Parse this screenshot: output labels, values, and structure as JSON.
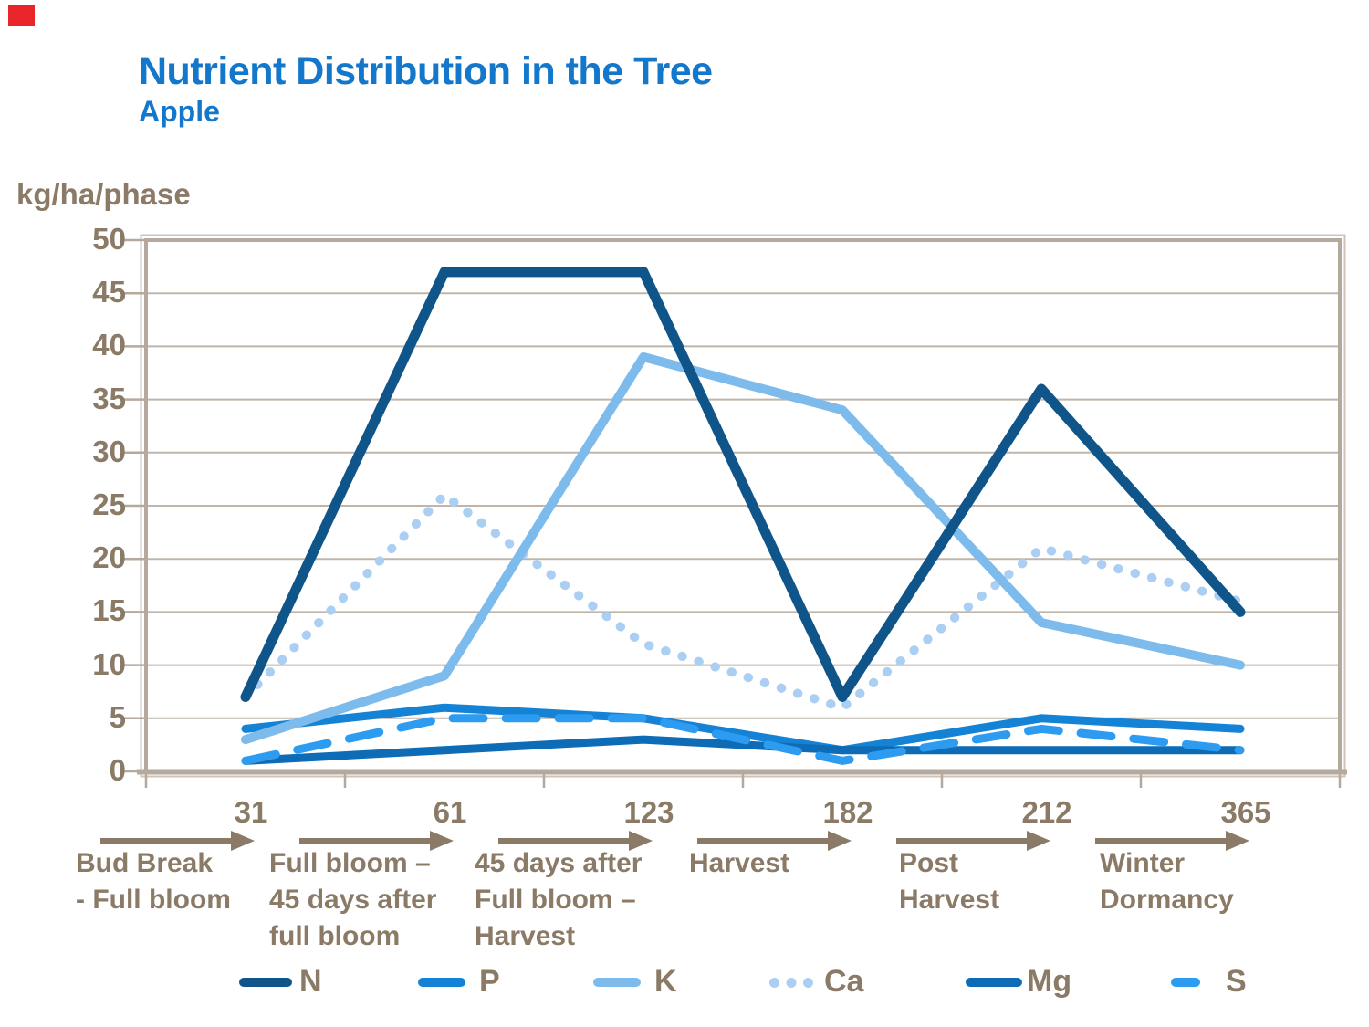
{
  "slide": {
    "title": "Nutrient Distribution in the Tree",
    "subtitle": "Apple"
  },
  "colors": {
    "title_blue": "#1377cb",
    "text_brown": "#8a7a66",
    "axis_tan": "#b4a99c",
    "gridline_tan": "#bfb5a8",
    "corner_mark_red": "#e8262a"
  },
  "chart_data": {
    "type": "line",
    "title": "Nutrient Distribution in the Tree",
    "subtitle": "Apple",
    "y_axis_label": "kg/ha/phase",
    "ylim": [
      0,
      50
    ],
    "y_tick_step": 5,
    "y_tick_labels": [
      "50",
      "45",
      "40",
      "35",
      "30",
      "25",
      "20",
      "15",
      "10",
      "5",
      "0"
    ],
    "grid": "horizontal",
    "legend_position": "bottom",
    "x_tick_labels": [
      "31",
      "61",
      "123",
      "182",
      "212",
      "365"
    ],
    "x_phases": [
      {
        "lines": [
          "Bud Break",
          "- Full bloom"
        ]
      },
      {
        "lines": [
          "Full bloom –",
          "45 days after",
          "full bloom"
        ]
      },
      {
        "lines": [
          "45 days after",
          "Full bloom –",
          "Harvest"
        ]
      },
      {
        "lines": [
          "Harvest"
        ]
      },
      {
        "lines": [
          "Post",
          "Harvest"
        ]
      },
      {
        "lines": [
          "Winter",
          "Dormancy"
        ]
      }
    ],
    "series": [
      {
        "name": "N",
        "color": "#0f558a",
        "style": "solid",
        "values": [
          7,
          47,
          47,
          7,
          36,
          15
        ]
      },
      {
        "name": "P",
        "color": "#1583d5",
        "style": "solid",
        "values": [
          4,
          6,
          5,
          2,
          5,
          4
        ]
      },
      {
        "name": "K",
        "color": "#7dbbec",
        "style": "solid",
        "values": [
          3,
          9,
          39,
          34,
          14,
          10
        ]
      },
      {
        "name": "Ca",
        "color": "#abcff2",
        "style": "dotted",
        "values": [
          7,
          26,
          12,
          6,
          21,
          16
        ]
      },
      {
        "name": "Mg",
        "color": "#0d6cb5",
        "style": "solid",
        "values": [
          1,
          2,
          3,
          2,
          2,
          2
        ]
      },
      {
        "name": "S",
        "color": "#2d9bf0",
        "style": "dashed",
        "values": [
          1,
          5,
          5,
          1,
          4,
          2
        ]
      }
    ]
  }
}
